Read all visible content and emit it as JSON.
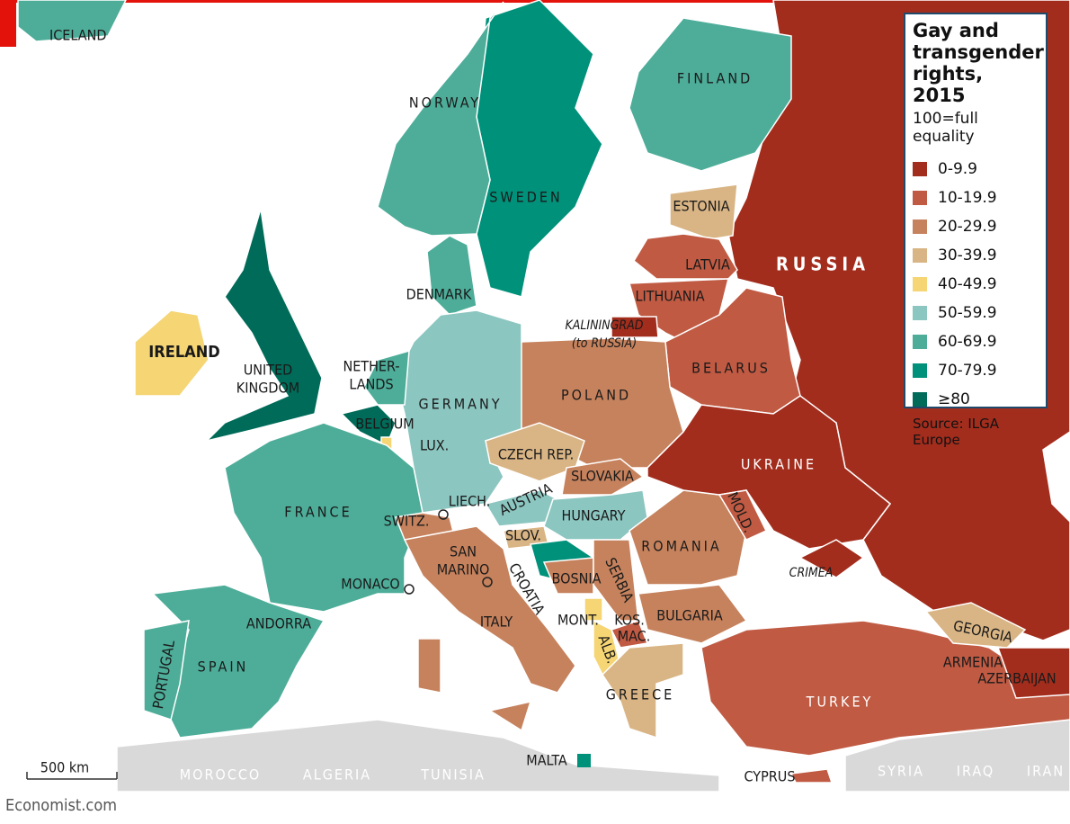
{
  "title": "Gay and transgender rights, 2015",
  "subtitle": "100=full equality",
  "legend": [
    {
      "label": "0-9.9",
      "color": "#a32d1d"
    },
    {
      "label": "10-19.9",
      "color": "#c05a43"
    },
    {
      "label": "20-29.9",
      "color": "#c6825d"
    },
    {
      "label": "30-39.9",
      "color": "#d9b585"
    },
    {
      "label": "40-49.9",
      "color": "#f5d574"
    },
    {
      "label": "50-59.9",
      "color": "#8cc6c0"
    },
    {
      "label": "60-69.9",
      "color": "#4dad99"
    },
    {
      "label": "70-79.9",
      "color": "#00917a"
    },
    {
      "label": "≥80",
      "color": "#006b58"
    }
  ],
  "source": "Source: ILGA Europe",
  "scale_label": "500 km",
  "credit": "Economist.com",
  "labels": [
    "ICELAND",
    "NORWAY",
    "SWEDEN",
    "FINLAND",
    "ESTONIA",
    "LATVIA",
    "LITHUANIA",
    "RUSSIA",
    "DENMARK",
    [
      "KALININGRAD",
      "(to RUSSIA)"
    ],
    "BELARUS",
    [
      "NETHER-",
      "LANDS"
    ],
    "IRELAND",
    [
      "UNITED",
      "KINGDOM"
    ],
    "GERMANY",
    "POLAND",
    "BELGIUM",
    "LUX.",
    "CZECH REP.",
    "UKRAINE",
    "SLOVAKIA",
    "LIECH.",
    "AUSTRIA",
    "HUNGARY",
    "FRANCE",
    "SWITZ.",
    "SLOV.",
    "MOLD.",
    "ROMANIA",
    [
      "SAN",
      "MARINO"
    ],
    "CROATIA",
    "BOSNIA",
    "SERBIA",
    "CRIMEA",
    "MONACO",
    "MONT.",
    "KOS.",
    "BULGARIA",
    "ANDORRA",
    "ITALY",
    "MAC.",
    "ALB.",
    "GEORGIA",
    "ARMENIA",
    "AZERBAIJAN",
    "SPAIN",
    "PORTUGAL",
    "GREECE",
    "TURKEY",
    "MALTA",
    "CYPRUS",
    "MOROCCO",
    "ALGERIA",
    "TUNISIA",
    "SYRIA",
    "IRAQ",
    "IRAN"
  ]
}
